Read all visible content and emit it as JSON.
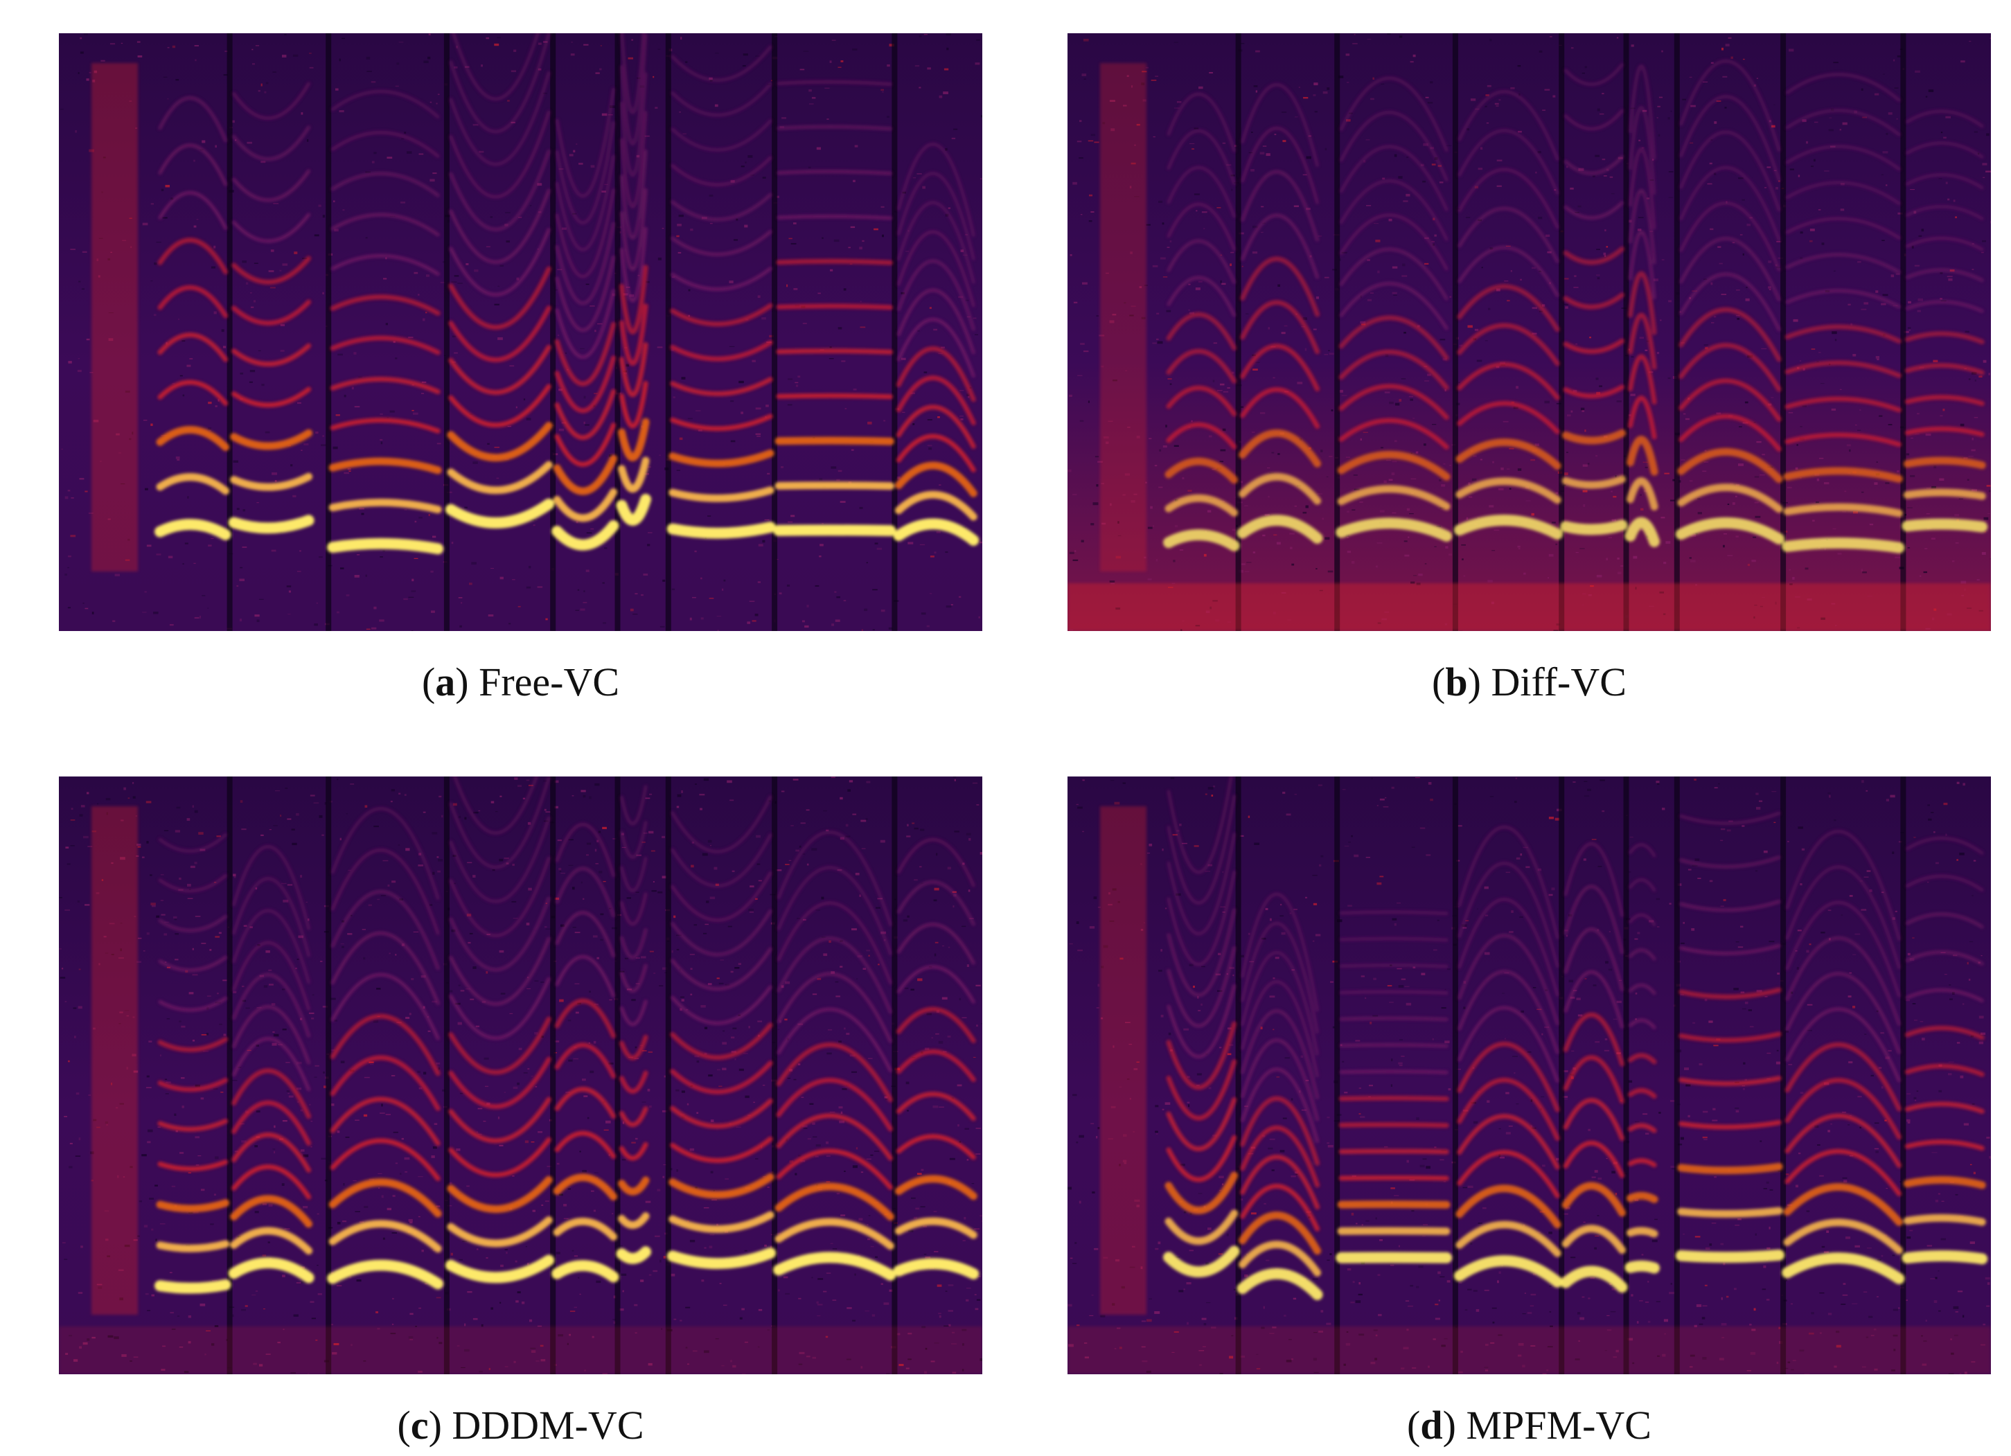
{
  "panels": [
    {
      "id": "a",
      "letter": "a",
      "label": "Free-VC",
      "profile": {
        "seed": 11,
        "hot": 1.0,
        "noise": 0.55,
        "bottomGlow": 0.15
      }
    },
    {
      "id": "b",
      "letter": "b",
      "label": "Diff-VC",
      "profile": {
        "seed": 23,
        "hot": 0.85,
        "noise": 0.75,
        "bottomGlow": 0.9
      }
    },
    {
      "id": "c",
      "letter": "c",
      "label": "DDDM-VC",
      "profile": {
        "seed": 37,
        "hot": 1.0,
        "noise": 0.9,
        "bottomGlow": 0.35
      }
    },
    {
      "id": "d",
      "letter": "d",
      "label": "MPFM-VC",
      "profile": {
        "seed": 53,
        "hot": 0.95,
        "noise": 0.7,
        "bottomGlow": 0.4
      }
    }
  ],
  "colors": {
    "background": "#1c0434",
    "deep": "#3b0a57",
    "mid": "#8a1f6a",
    "red": "#d8202c",
    "orange": "#f06a10",
    "yellow": "#fde96a"
  }
}
